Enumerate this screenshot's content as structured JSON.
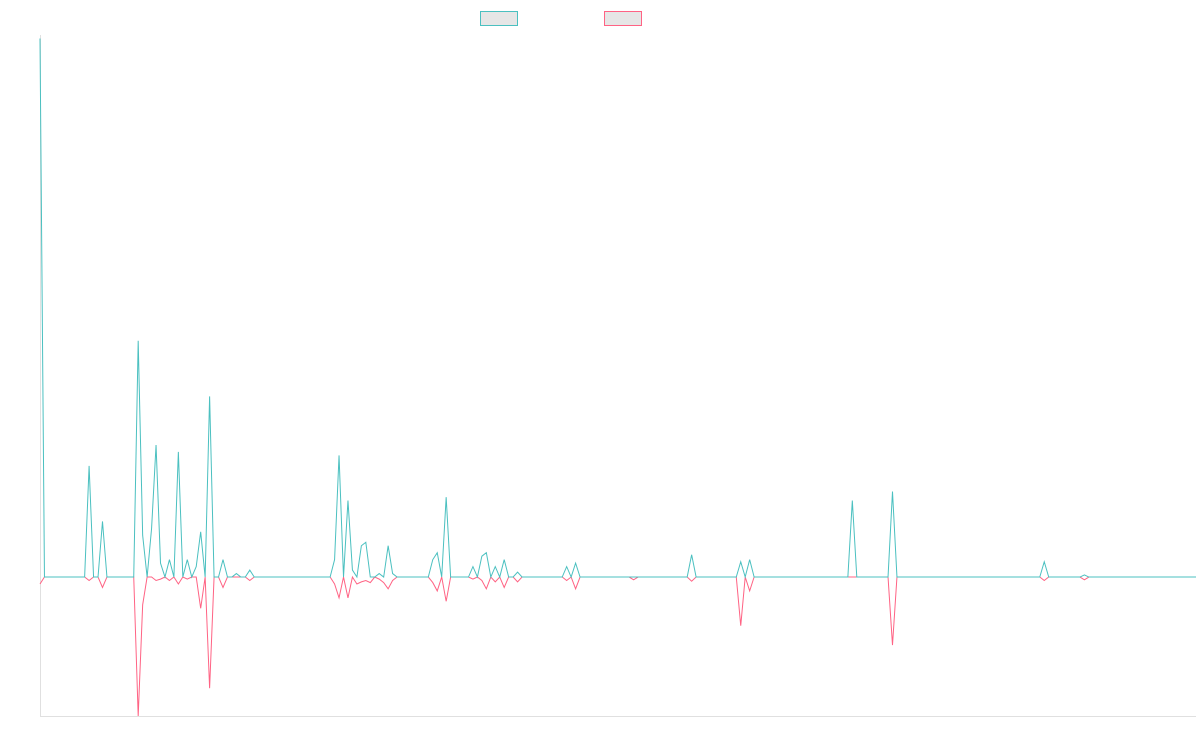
{
  "chart_data": {
    "type": "line",
    "title": "",
    "xlabel": "",
    "ylabel": "",
    "grid": false,
    "legend_position": "top-center",
    "ylim": [
      -20,
      78
    ],
    "x_count": 260,
    "series": [
      {
        "color": "#4bc0c0",
        "points": [
          [
            0,
            77.5
          ],
          [
            1,
            0
          ],
          [
            10,
            0
          ],
          [
            11,
            16
          ],
          [
            12,
            0
          ],
          [
            13,
            0
          ],
          [
            14,
            8
          ],
          [
            15,
            0
          ],
          [
            21,
            0
          ],
          [
            22,
            34
          ],
          [
            23,
            6
          ],
          [
            24,
            0
          ],
          [
            25,
            7
          ],
          [
            26,
            19
          ],
          [
            27,
            2
          ],
          [
            28,
            0
          ],
          [
            29,
            2.5
          ],
          [
            30,
            0
          ],
          [
            31,
            18
          ],
          [
            32,
            0
          ],
          [
            33,
            2.5
          ],
          [
            34,
            0
          ],
          [
            35,
            1.5
          ],
          [
            36,
            6.5
          ],
          [
            37,
            0
          ],
          [
            38,
            26
          ],
          [
            39,
            0
          ],
          [
            40,
            0
          ],
          [
            41,
            2.5
          ],
          [
            42,
            0
          ],
          [
            43,
            0
          ],
          [
            44,
            0.5
          ],
          [
            45,
            0
          ],
          [
            46,
            0
          ],
          [
            47,
            1
          ],
          [
            48,
            0
          ],
          [
            65,
            0
          ],
          [
            66,
            2.5
          ],
          [
            67,
            17.5
          ],
          [
            68,
            0
          ],
          [
            69,
            11
          ],
          [
            70,
            1
          ],
          [
            71,
            0
          ],
          [
            72,
            4.5
          ],
          [
            73,
            5
          ],
          [
            74,
            0
          ],
          [
            75,
            0
          ],
          [
            76,
            0.5
          ],
          [
            77,
            0
          ],
          [
            78,
            4.5
          ],
          [
            79,
            0.5
          ],
          [
            80,
            0
          ],
          [
            87,
            0
          ],
          [
            88,
            2.5
          ],
          [
            89,
            3.5
          ],
          [
            90,
            0
          ],
          [
            91,
            11.5
          ],
          [
            92,
            0
          ],
          [
            96,
            0
          ],
          [
            97,
            1.5
          ],
          [
            98,
            0
          ],
          [
            99,
            3
          ],
          [
            100,
            3.5
          ],
          [
            101,
            0
          ],
          [
            102,
            1.5
          ],
          [
            103,
            0
          ],
          [
            104,
            2.5
          ],
          [
            105,
            0
          ],
          [
            106,
            0
          ],
          [
            107,
            0.7
          ],
          [
            108,
            0
          ],
          [
            117,
            0
          ],
          [
            118,
            1.5
          ],
          [
            119,
            0
          ],
          [
            120,
            2
          ],
          [
            121,
            0
          ],
          [
            132,
            0
          ],
          [
            133,
            0
          ],
          [
            134,
            0
          ],
          [
            145,
            0
          ],
          [
            146,
            3.2
          ],
          [
            147,
            0
          ],
          [
            156,
            0
          ],
          [
            157,
            2.2
          ],
          [
            158,
            0
          ],
          [
            159,
            2.5
          ],
          [
            160,
            0
          ],
          [
            162,
            0
          ],
          [
            163,
            0
          ],
          [
            164,
            0
          ],
          [
            181,
            0
          ],
          [
            182,
            11
          ],
          [
            183,
            0
          ],
          [
            190,
            0
          ],
          [
            191,
            12.3
          ],
          [
            192,
            0
          ],
          [
            224,
            0
          ],
          [
            225,
            2.2
          ],
          [
            226,
            0
          ],
          [
            233,
            0
          ],
          [
            234,
            0.3
          ],
          [
            235,
            0
          ],
          [
            259,
            0
          ]
        ]
      },
      {
        "color": "#ff6384",
        "points": [
          [
            0,
            -1
          ],
          [
            1,
            0
          ],
          [
            10,
            0
          ],
          [
            11,
            -0.5
          ],
          [
            12,
            0
          ],
          [
            13,
            0
          ],
          [
            14,
            -1.5
          ],
          [
            15,
            0
          ],
          [
            21,
            0
          ],
          [
            22,
            -20
          ],
          [
            23,
            -4
          ],
          [
            24,
            0
          ],
          [
            25,
            0
          ],
          [
            26,
            -0.5
          ],
          [
            27,
            -0.3
          ],
          [
            28,
            0
          ],
          [
            29,
            -0.5
          ],
          [
            30,
            0
          ],
          [
            31,
            -1
          ],
          [
            32,
            0
          ],
          [
            33,
            -0.3
          ],
          [
            34,
            0
          ],
          [
            35,
            0
          ],
          [
            36,
            -4.5
          ],
          [
            37,
            0
          ],
          [
            38,
            -16
          ],
          [
            39,
            0
          ],
          [
            40,
            0
          ],
          [
            41,
            -1.5
          ],
          [
            42,
            0
          ],
          [
            43,
            0
          ],
          [
            44,
            0
          ],
          [
            45,
            0
          ],
          [
            46,
            0
          ],
          [
            47,
            -0.5
          ],
          [
            48,
            0
          ],
          [
            65,
            0
          ],
          [
            66,
            -1
          ],
          [
            67,
            -3
          ],
          [
            68,
            0
          ],
          [
            69,
            -3
          ],
          [
            70,
            0
          ],
          [
            71,
            -1
          ],
          [
            72,
            -0.7
          ],
          [
            73,
            -0.5
          ],
          [
            74,
            -0.8
          ],
          [
            75,
            0
          ],
          [
            76,
            -0.3
          ],
          [
            77,
            -0.8
          ],
          [
            78,
            -1.7
          ],
          [
            79,
            -0.5
          ],
          [
            80,
            0
          ],
          [
            87,
            0
          ],
          [
            88,
            -0.8
          ],
          [
            89,
            -2
          ],
          [
            90,
            0
          ],
          [
            91,
            -3.5
          ],
          [
            92,
            0
          ],
          [
            96,
            0
          ],
          [
            97,
            -0.3
          ],
          [
            98,
            0
          ],
          [
            99,
            -0.5
          ],
          [
            100,
            -1.7
          ],
          [
            101,
            0
          ],
          [
            102,
            -0.7
          ],
          [
            103,
            0
          ],
          [
            104,
            -1.5
          ],
          [
            105,
            0
          ],
          [
            106,
            0
          ],
          [
            107,
            -0.7
          ],
          [
            108,
            0
          ],
          [
            117,
            0
          ],
          [
            118,
            -0.5
          ],
          [
            119,
            0
          ],
          [
            120,
            -1.7
          ],
          [
            121,
            0
          ],
          [
            132,
            0
          ],
          [
            133,
            -0.4
          ],
          [
            134,
            0
          ],
          [
            145,
            0
          ],
          [
            146,
            -0.6
          ],
          [
            147,
            0
          ],
          [
            156,
            0
          ],
          [
            157,
            -7
          ],
          [
            158,
            0
          ],
          [
            159,
            -2
          ],
          [
            160,
            0
          ],
          [
            162,
            0
          ],
          [
            163,
            0
          ],
          [
            164,
            0
          ],
          [
            181,
            0
          ],
          [
            182,
            0
          ],
          [
            183,
            0
          ],
          [
            190,
            0
          ],
          [
            191,
            -9.8
          ],
          [
            192,
            0
          ],
          [
            224,
            0
          ],
          [
            225,
            -0.5
          ],
          [
            226,
            0
          ],
          [
            233,
            0
          ],
          [
            234,
            -0.4
          ],
          [
            235,
            0
          ],
          [
            259,
            0
          ]
        ]
      }
    ]
  }
}
